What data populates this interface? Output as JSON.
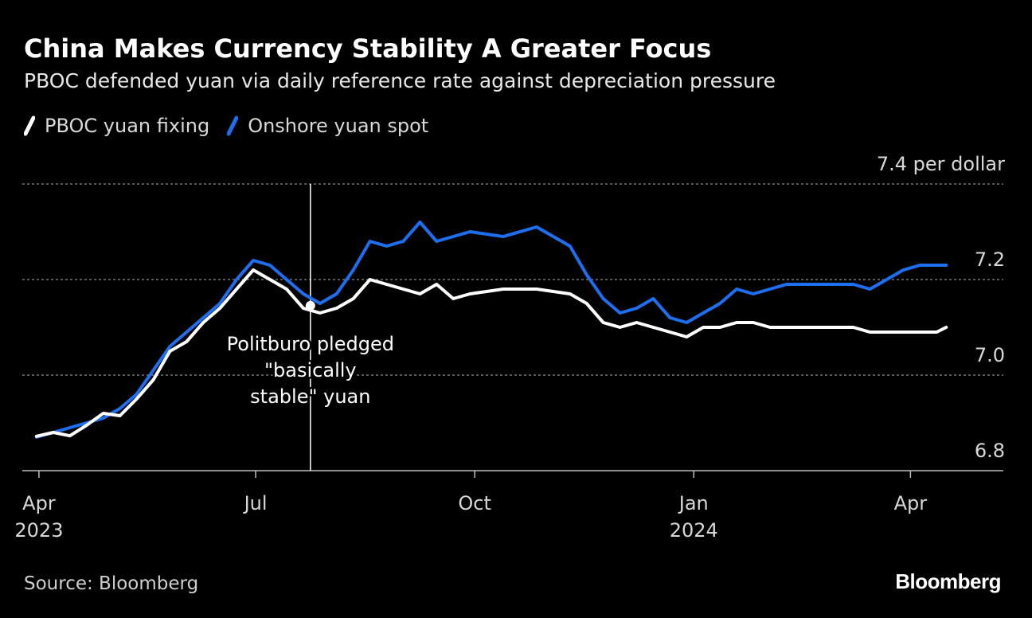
{
  "header": {
    "title": "China Makes Currency Stability A Greater Focus",
    "subtitle": "PBOC defended yuan via daily reference rate against depreciation pressure"
  },
  "footer": {
    "source": "Source: Bloomberg",
    "brand": "Bloomberg"
  },
  "colors": {
    "background": "#000000",
    "fixing": "#ffffff",
    "spot": "#1e6ff0",
    "grid": "#8a8a8a"
  },
  "chart_data": {
    "type": "line",
    "title": "China Makes Currency Stability A Greater Focus",
    "subtitle": "PBOC defended yuan via daily reference rate against depreciation pressure",
    "xlabel": "",
    "ylabel": "",
    "unit_label": "7.4 per dollar",
    "ylim": [
      6.8,
      7.4
    ],
    "xlim": [
      "2023-03-25",
      "2024-05-10"
    ],
    "y_ticks": [
      {
        "value": 7.4,
        "label": "7.4 per dollar"
      },
      {
        "value": 7.2,
        "label": "7.2"
      },
      {
        "value": 7.0,
        "label": "7.0"
      },
      {
        "value": 6.8,
        "label": "6.8"
      }
    ],
    "x_ticks": [
      {
        "date": "2023-04-01",
        "label": "Apr",
        "year": "2023"
      },
      {
        "date": "2023-07-01",
        "label": "Jul",
        "year": ""
      },
      {
        "date": "2023-10-01",
        "label": "Oct",
        "year": ""
      },
      {
        "date": "2024-01-01",
        "label": "Jan",
        "year": "2024"
      },
      {
        "date": "2024-04-01",
        "label": "Apr",
        "year": ""
      }
    ],
    "grid": true,
    "legend_position": "top-left",
    "annotation": {
      "date": "2023-07-24",
      "value": 7.1452,
      "lines": [
        "Politburo pledged",
        "\"basically",
        "stable\" yuan"
      ]
    },
    "series": [
      {
        "name": "PBOC yuan fixing",
        "color": "#ffffff",
        "points": [
          [
            "2023-03-31",
            6.872
          ],
          [
            "2023-04-07",
            6.88
          ],
          [
            "2023-04-14",
            6.873
          ],
          [
            "2023-04-21",
            6.895
          ],
          [
            "2023-04-28",
            6.92
          ],
          [
            "2023-05-05",
            6.915
          ],
          [
            "2023-05-12",
            6.95
          ],
          [
            "2023-05-19",
            6.99
          ],
          [
            "2023-05-26",
            7.05
          ],
          [
            "2023-06-02",
            7.07
          ],
          [
            "2023-06-09",
            7.11
          ],
          [
            "2023-06-16",
            7.14
          ],
          [
            "2023-06-23",
            7.18
          ],
          [
            "2023-06-30",
            7.22
          ],
          [
            "2023-07-07",
            7.2
          ],
          [
            "2023-07-14",
            7.18
          ],
          [
            "2023-07-21",
            7.14
          ],
          [
            "2023-07-28",
            7.13
          ],
          [
            "2023-08-04",
            7.14
          ],
          [
            "2023-08-11",
            7.16
          ],
          [
            "2023-08-18",
            7.2
          ],
          [
            "2023-08-25",
            7.19
          ],
          [
            "2023-09-01",
            7.18
          ],
          [
            "2023-09-08",
            7.17
          ],
          [
            "2023-09-15",
            7.19
          ],
          [
            "2023-09-22",
            7.16
          ],
          [
            "2023-09-29",
            7.17
          ],
          [
            "2023-10-13",
            7.18
          ],
          [
            "2023-10-27",
            7.18
          ],
          [
            "2023-11-10",
            7.17
          ],
          [
            "2023-11-17",
            7.15
          ],
          [
            "2023-11-24",
            7.11
          ],
          [
            "2023-12-01",
            7.1
          ],
          [
            "2023-12-08",
            7.11
          ],
          [
            "2023-12-15",
            7.1
          ],
          [
            "2023-12-22",
            7.09
          ],
          [
            "2023-12-29",
            7.08
          ],
          [
            "2024-01-05",
            7.1
          ],
          [
            "2024-01-12",
            7.1
          ],
          [
            "2024-01-19",
            7.11
          ],
          [
            "2024-01-26",
            7.11
          ],
          [
            "2024-02-02",
            7.1
          ],
          [
            "2024-02-09",
            7.1
          ],
          [
            "2024-02-16",
            7.1
          ],
          [
            "2024-02-23",
            7.1
          ],
          [
            "2024-03-01",
            7.1
          ],
          [
            "2024-03-08",
            7.1
          ],
          [
            "2024-03-15",
            7.09
          ],
          [
            "2024-03-22",
            7.09
          ],
          [
            "2024-03-29",
            7.09
          ],
          [
            "2024-04-05",
            7.09
          ],
          [
            "2024-04-12",
            7.09
          ],
          [
            "2024-04-16",
            7.1
          ]
        ]
      },
      {
        "name": "Onshore yuan spot",
        "color": "#1e6ff0",
        "points": [
          [
            "2023-03-31",
            6.87
          ],
          [
            "2023-04-07",
            6.88
          ],
          [
            "2023-04-14",
            6.89
          ],
          [
            "2023-04-21",
            6.9
          ],
          [
            "2023-04-28",
            6.91
          ],
          [
            "2023-05-05",
            6.93
          ],
          [
            "2023-05-12",
            6.96
          ],
          [
            "2023-05-19",
            7.01
          ],
          [
            "2023-05-26",
            7.06
          ],
          [
            "2023-06-02",
            7.09
          ],
          [
            "2023-06-09",
            7.12
          ],
          [
            "2023-06-16",
            7.15
          ],
          [
            "2023-06-23",
            7.2
          ],
          [
            "2023-06-30",
            7.24
          ],
          [
            "2023-07-07",
            7.23
          ],
          [
            "2023-07-14",
            7.2
          ],
          [
            "2023-07-21",
            7.17
          ],
          [
            "2023-07-28",
            7.15
          ],
          [
            "2023-08-04",
            7.17
          ],
          [
            "2023-08-11",
            7.22
          ],
          [
            "2023-08-18",
            7.28
          ],
          [
            "2023-08-25",
            7.27
          ],
          [
            "2023-09-01",
            7.28
          ],
          [
            "2023-09-08",
            7.32
          ],
          [
            "2023-09-15",
            7.28
          ],
          [
            "2023-09-22",
            7.29
          ],
          [
            "2023-09-29",
            7.3
          ],
          [
            "2023-10-13",
            7.29
          ],
          [
            "2023-10-27",
            7.31
          ],
          [
            "2023-11-10",
            7.27
          ],
          [
            "2023-11-17",
            7.21
          ],
          [
            "2023-11-24",
            7.16
          ],
          [
            "2023-12-01",
            7.13
          ],
          [
            "2023-12-08",
            7.14
          ],
          [
            "2023-12-15",
            7.16
          ],
          [
            "2023-12-22",
            7.12
          ],
          [
            "2023-12-29",
            7.11
          ],
          [
            "2024-01-05",
            7.13
          ],
          [
            "2024-01-12",
            7.15
          ],
          [
            "2024-01-19",
            7.18
          ],
          [
            "2024-01-26",
            7.17
          ],
          [
            "2024-02-02",
            7.18
          ],
          [
            "2024-02-09",
            7.19
          ],
          [
            "2024-02-16",
            7.19
          ],
          [
            "2024-02-23",
            7.19
          ],
          [
            "2024-03-01",
            7.19
          ],
          [
            "2024-03-08",
            7.19
          ],
          [
            "2024-03-15",
            7.18
          ],
          [
            "2024-03-22",
            7.2
          ],
          [
            "2024-03-29",
            7.22
          ],
          [
            "2024-04-05",
            7.23
          ],
          [
            "2024-04-12",
            7.23
          ],
          [
            "2024-04-16",
            7.23
          ]
        ]
      }
    ]
  }
}
